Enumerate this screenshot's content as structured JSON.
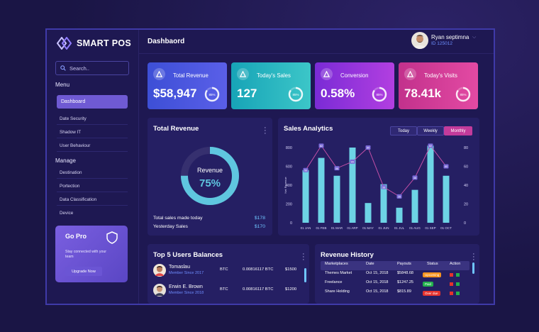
{
  "brand": {
    "name": "SMART POS"
  },
  "search": {
    "placeholder": "Search.."
  },
  "sidebar": {
    "menu_heading": "Menu",
    "menu_items": [
      "Dashboard",
      "Date Security",
      "Shadow IT",
      "User Behaviour"
    ],
    "manage_heading": "Manage",
    "manage_items": [
      "Destination",
      "Portection",
      "Data Classification",
      "Device"
    ],
    "gopro": {
      "title": "Go Pro",
      "text": "Stay connected with your team",
      "button": "Upgrade Now"
    }
  },
  "header": {
    "title": "Dashbaord",
    "user_name": "Ryan septimna",
    "user_id": "ID 125012"
  },
  "stats": [
    {
      "label": "Total Revenue",
      "value": "$58,947",
      "percent": "85%",
      "progress": 0.85,
      "color_from": "#3d4fd6",
      "color_to": "#5a5fe8"
    },
    {
      "label": "Today's Sales",
      "value": "127",
      "percent": "85%",
      "progress": 0.85,
      "color_from": "#17a4b7",
      "color_to": "#3cc6c8"
    },
    {
      "label": "Conversion",
      "value": "0.58%",
      "percent": "85%",
      "progress": 0.85,
      "color_from": "#7a2bd6",
      "color_to": "#b23fe0"
    },
    {
      "label": "Today's Visits",
      "value": "78.41k",
      "percent": "85%",
      "progress": 0.85,
      "color_from": "#c2318c",
      "color_to": "#e34aa3"
    }
  ],
  "total_revenue": {
    "title": "Total Revenue",
    "donut_label": "Revenue",
    "donut_value": "75%",
    "donut_progress": 0.75,
    "rows": [
      {
        "label": "Total sales made today",
        "value": "$178"
      },
      {
        "label": "Yesterday Sales",
        "value": "$170"
      }
    ]
  },
  "sales_analytics": {
    "title": "Sales Analytics",
    "tabs": [
      "Today",
      "Weekly",
      "Monthly"
    ],
    "active_tab": "Monthly"
  },
  "chart_data": {
    "type": "bar",
    "categories": [
      "01 JAN",
      "01 FEB",
      "01 MAR",
      "01 ARP",
      "01 MAY",
      "01 JUN",
      "01 JUL",
      "01 AUG",
      "01 SEP",
      "01 OCT"
    ],
    "ylabel": "Net Revenue",
    "ylim": [
      0,
      800
    ],
    "yticks": [
      0,
      200,
      400,
      600,
      800
    ],
    "y2lim": [
      0,
      80
    ],
    "y2ticks": [
      0,
      20,
      40,
      60,
      80
    ],
    "series": [
      {
        "type": "bar",
        "values": [
          560,
          690,
          500,
          800,
          210,
          410,
          160,
          350,
          820,
          500
        ]
      },
      {
        "type": "line",
        "values": [
          56,
          82,
          58,
          65,
          80,
          38,
          28,
          48,
          82,
          60
        ]
      }
    ],
    "bar_color": "#6dd3e5",
    "line_color": "#c24fa6"
  },
  "top_users": {
    "title": "Top 5 Users Balances",
    "rows": [
      {
        "name": "Tomaslau",
        "since": "Member Since 2017",
        "currency": "BTC",
        "amount": "0.00816117 BTC",
        "usd": "$1500"
      },
      {
        "name": "Erwin E. Brown",
        "since": "Member Since 2018",
        "currency": "BTC",
        "amount": "0.00816117 BTC",
        "usd": "$1200"
      }
    ]
  },
  "revenue_history": {
    "title": "Revenue History",
    "headers": [
      "Marketplaces",
      "Date",
      "Payouts",
      "Status",
      "Action"
    ],
    "rows": [
      {
        "market": "Themes Market",
        "date": "Oct 15, 2018",
        "payout": "$5848.68",
        "status": "Upcoming",
        "status_color": "#f7931e"
      },
      {
        "market": "Freelance",
        "date": "Oct 15, 2018",
        "payout": "$1247.25",
        "status": "Paid",
        "status_color": "#22b14c"
      },
      {
        "market": "Share Holding",
        "date": "Oct 15, 2018",
        "payout": "$815.89",
        "status": "Over due",
        "status_color": "#e5322d"
      }
    ]
  }
}
